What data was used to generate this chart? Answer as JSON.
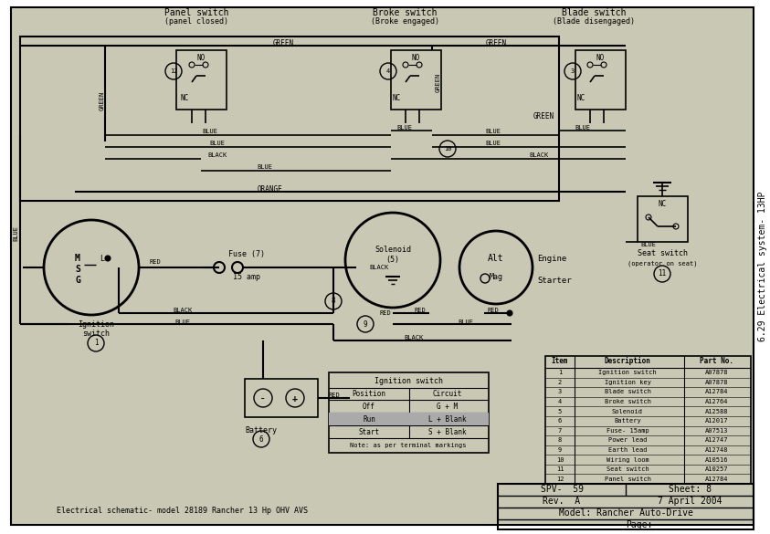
{
  "title": "6.29 Electrical system- 13HP",
  "bg_color": "#c8c8b4",
  "line_color": "#000000",
  "panel_switch_label": "Panel switch",
  "panel_switch_sub": "(panel closed)",
  "brake_switch_label": "Broke switch",
  "brake_switch_sub": "(Broke engaged)",
  "blade_switch_label": "Blade switch",
  "blade_switch_sub": "(Blade disengaged)",
  "bottom_left_text": "Electrical schematic- model 28189 Rancher 13 Hp OHV AVS",
  "parts_table": {
    "headers": [
      "Item",
      "Description",
      "Part No."
    ],
    "rows": [
      [
        "1",
        "Ignition switch",
        "A07878"
      ],
      [
        "2",
        "Ignition key",
        "A07878"
      ],
      [
        "3",
        "Blade switch",
        "A12784"
      ],
      [
        "4",
        "Broke switch",
        "A12764"
      ],
      [
        "5",
        "Solenoid",
        "A12588"
      ],
      [
        "6",
        "Battery",
        "A12017"
      ],
      [
        "7",
        "Fuse- 15amp",
        "A07513"
      ],
      [
        "8",
        "Power lead",
        "A12747"
      ],
      [
        "9",
        "Earth lead",
        "A12748"
      ],
      [
        "10",
        "Wiring loom",
        "A10516"
      ],
      [
        "11",
        "Seat switch",
        "A10257"
      ],
      [
        "12",
        "Panel switch",
        "A12784"
      ]
    ]
  },
  "ignition_table": {
    "title": "Ignition switch",
    "headers": [
      "Position",
      "Circuit"
    ],
    "rows": [
      [
        "Off",
        "G + M"
      ],
      [
        "Run",
        "L + Blank"
      ],
      [
        "Start",
        "S + Blank"
      ]
    ],
    "note": "Note: as per terminal markings"
  },
  "info_box": {
    "line1_left": "SPV-  59",
    "line1_right": "Sheet: 8",
    "line2_left": "Rev.  A",
    "line2_right": "7 April 2004",
    "line3": "Model: Rancher Auto-Drive",
    "line4": "Page:"
  }
}
